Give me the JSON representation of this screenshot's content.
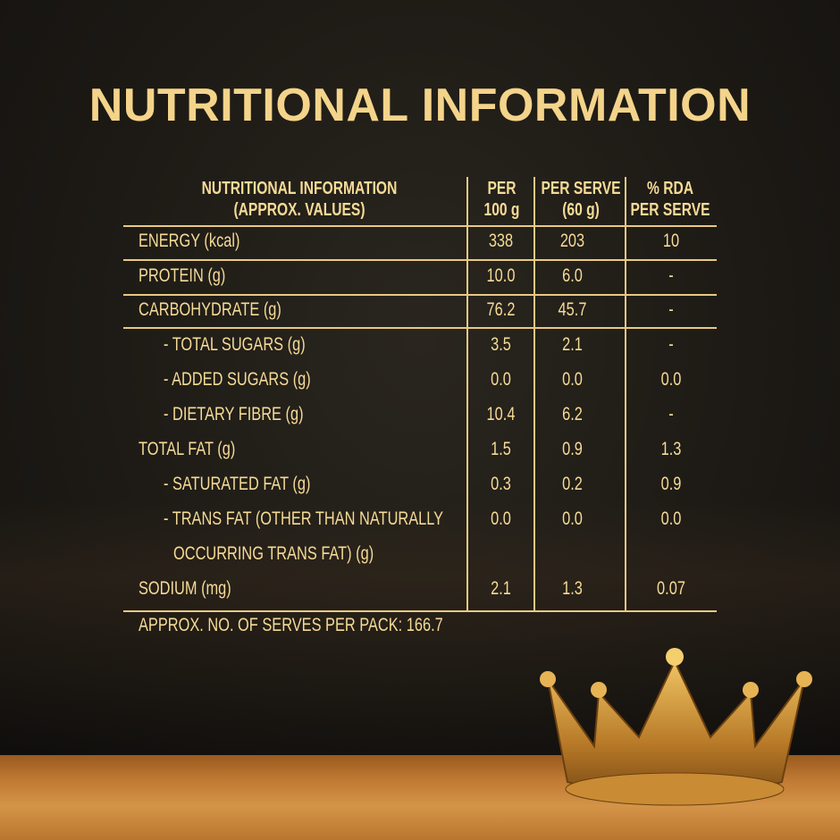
{
  "title": "NUTRITIONAL INFORMATION",
  "table": {
    "headers": [
      "NUTRITIONAL INFORMATION",
      "(APPROX. VALUES)",
      "PER",
      "100 g",
      "PER SERVE",
      "(60 g)",
      "% RDA",
      "PER SERVE"
    ],
    "rows": [
      {
        "label": "ENERGY (kcal)",
        "indent": false,
        "per100": "338",
        "perServe": "203",
        "rda": "10"
      },
      {
        "label": "PROTEIN (g)",
        "indent": false,
        "per100": "10.0",
        "perServe": "6.0",
        "rda": "-"
      },
      {
        "label": "CARBOHYDRATE (g)",
        "indent": false,
        "per100": "76.2",
        "perServe": "45.7",
        "rda": "-"
      },
      {
        "label": "- TOTAL SUGARS (g)",
        "indent": true,
        "per100": "3.5",
        "perServe": "2.1",
        "rda": "-"
      },
      {
        "label": "- ADDED SUGARS (g)",
        "indent": true,
        "per100": "0.0",
        "perServe": "0.0",
        "rda": "0.0"
      },
      {
        "label": "- DIETARY FIBRE (g)",
        "indent": true,
        "per100": "10.4",
        "perServe": "6.2",
        "rda": "-"
      },
      {
        "label": "TOTAL FAT (g)",
        "indent": false,
        "per100": "1.5",
        "perServe": "0.9",
        "rda": "1.3"
      },
      {
        "label": "- SATURATED FAT (g)",
        "indent": true,
        "per100": "0.3",
        "perServe": "0.2",
        "rda": "0.9"
      },
      {
        "label": "- TRANS FAT (OTHER THAN NATURALLY",
        "indent": true,
        "per100": "0.0",
        "perServe": "0.0",
        "rda": "0.0"
      },
      {
        "label": "OCCURRING TRANS FAT) (g)",
        "indent": true,
        "per100": "",
        "perServe": "",
        "rda": ""
      },
      {
        "label": "SODIUM (mg)",
        "indent": false,
        "per100": "2.1",
        "perServe": "1.3",
        "rda": "0.07"
      }
    ],
    "footer": "APPROX. NO. OF SERVES PER PACK: 166.7"
  },
  "colors": {
    "text": "#f6db96",
    "background": "#1d1a15",
    "floor": "#c07a33"
  }
}
